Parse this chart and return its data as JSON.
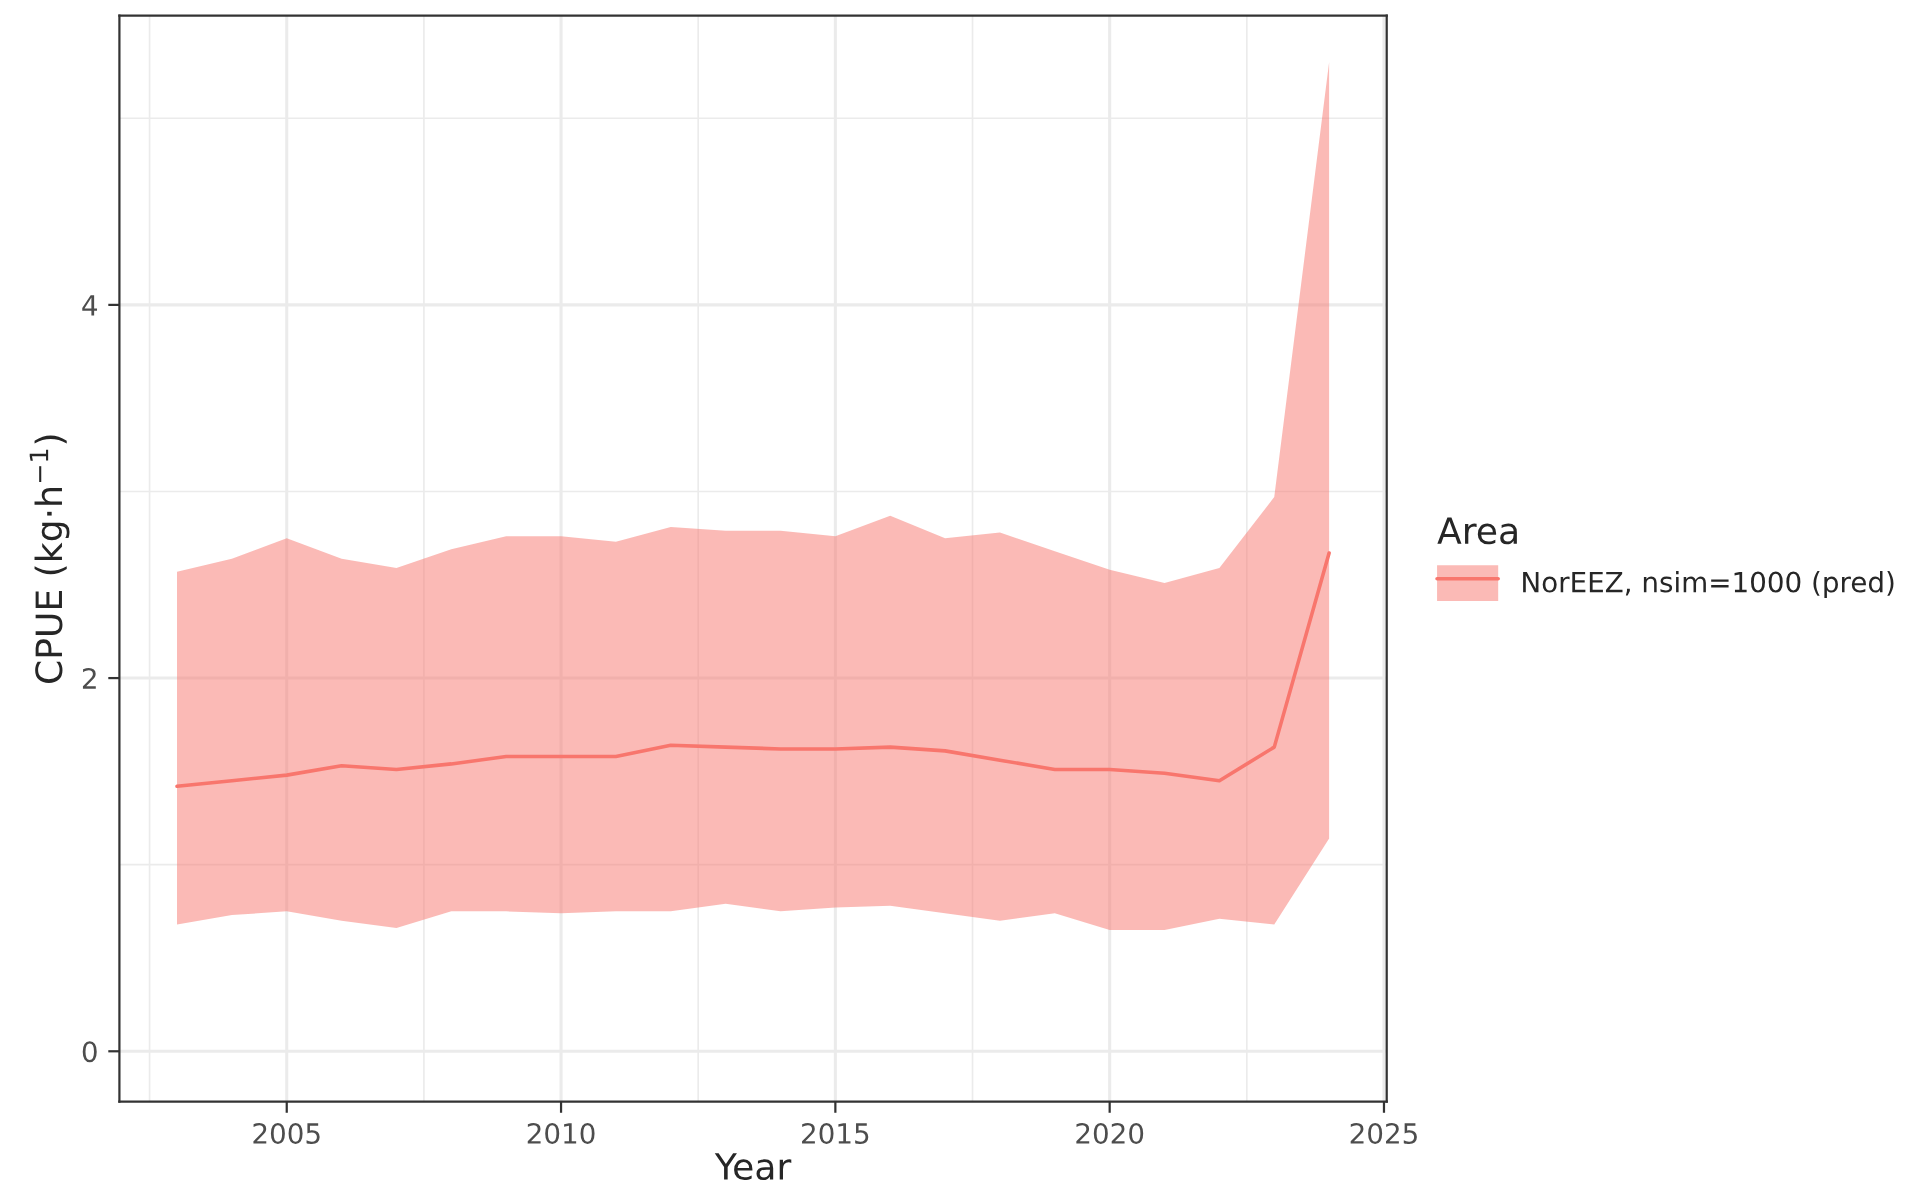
{
  "chart_data": {
    "type": "line",
    "xlabel": "Year",
    "ylabel": "CPUE (kg·h$^{−1}$)",
    "legend_title": "Area",
    "x": [
      2003,
      2004,
      2005,
      2006,
      2007,
      2008,
      2009,
      2010,
      2011,
      2012,
      2013,
      2014,
      2015,
      2016,
      2017,
      2018,
      2019,
      2020,
      2021,
      2022,
      2023,
      2024
    ],
    "series": [
      {
        "name": "NorEEZ, nsim=1000 (pred)",
        "color": "#f8766d",
        "values": [
          1.42,
          1.45,
          1.48,
          1.53,
          1.51,
          1.54,
          1.58,
          1.58,
          1.58,
          1.64,
          1.63,
          1.62,
          1.62,
          1.63,
          1.61,
          1.56,
          1.51,
          1.51,
          1.49,
          1.45,
          1.63,
          2.67
        ],
        "lower": [
          0.68,
          0.73,
          0.75,
          0.7,
          0.66,
          0.75,
          0.75,
          0.74,
          0.75,
          0.75,
          0.79,
          0.75,
          0.77,
          0.78,
          0.74,
          0.7,
          0.74,
          0.65,
          0.65,
          0.71,
          0.68,
          1.14
        ],
        "upper": [
          2.57,
          2.64,
          2.75,
          2.64,
          2.59,
          2.69,
          2.76,
          2.76,
          2.73,
          2.81,
          2.79,
          2.79,
          2.76,
          2.87,
          2.75,
          2.78,
          2.68,
          2.58,
          2.51,
          2.59,
          2.97,
          5.3
        ]
      }
    ],
    "xlim": [
      2001.95,
      2025.05
    ],
    "ylim": [
      -0.27,
      5.55
    ],
    "xticks": [
      2005,
      2010,
      2015,
      2020,
      2025
    ],
    "yticks": [
      0,
      2,
      4
    ],
    "grid": true,
    "legend": "right",
    "marker": "none",
    "line_style": "solid"
  }
}
